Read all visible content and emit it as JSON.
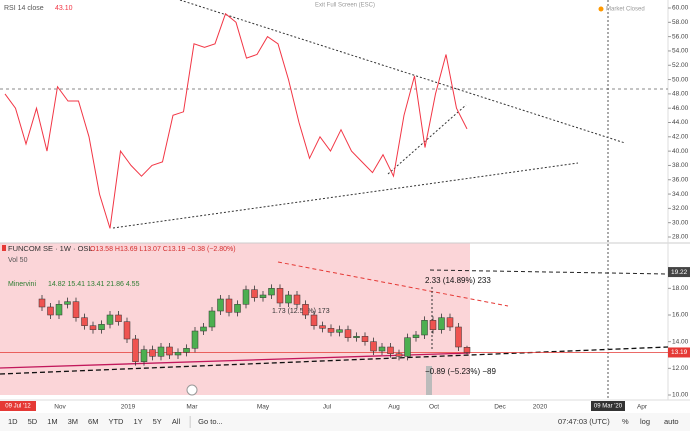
{
  "window": {
    "exit_full_screen": "Exit Full Screen (ESC)",
    "market_status": "Market Closed"
  },
  "rsi": {
    "label": "RSI 14 close",
    "last": "43.10",
    "color": "#f23645",
    "values": [
      48,
      46,
      41,
      46,
      40,
      49,
      47,
      47,
      42,
      34,
      29.2,
      40,
      38,
      36.5,
      38,
      38.5,
      45,
      45.5,
      55,
      54.5,
      55,
      59.2,
      58,
      53,
      53.5,
      56,
      55,
      50,
      44,
      39,
      42,
      40,
      43,
      40,
      38.5,
      37,
      39.5,
      36.5,
      45,
      50.5,
      40.5,
      48,
      53.5,
      46,
      43.1
    ],
    "ylim": [
      28,
      60
    ],
    "yticks": [
      {
        "value": 60,
        "label": "60.00"
      },
      {
        "value": 58,
        "label": "58.00"
      },
      {
        "value": 56,
        "label": "56.00"
      },
      {
        "value": 54,
        "label": "54.00"
      },
      {
        "value": 52,
        "label": "52.00"
      },
      {
        "value": 50,
        "label": "50.00"
      },
      {
        "value": 48,
        "label": "48.00"
      },
      {
        "value": 46,
        "label": "46.00"
      },
      {
        "value": 44,
        "label": "44.00"
      },
      {
        "value": 42,
        "label": "42.00"
      },
      {
        "value": 40,
        "label": "40.00"
      },
      {
        "value": 38,
        "label": "38.00"
      },
      {
        "value": 36,
        "label": "36.00"
      },
      {
        "value": 34,
        "label": "34.00"
      },
      {
        "value": 32,
        "label": "32.00"
      },
      {
        "value": 30,
        "label": "30.00"
      },
      {
        "value": 28,
        "label": "28.00"
      }
    ]
  },
  "price": {
    "symbol": "FUNCOM SE · 1W · OSL",
    "ohlc": "O13.58 H13.69 L13.07 C13.19 −0.38 (−2.80%)",
    "volume": "Vol 50",
    "indicator": "Minervini",
    "indicator_values": "14.82 15.41 13.41 21.86 4.55",
    "up_color": "#4caf50",
    "down_color": "#ef5350",
    "open": [
      17.2,
      16.6,
      16.0,
      16.8,
      17.0,
      15.8,
      15.2,
      14.9,
      15.3,
      16.0,
      15.5,
      14.2,
      12.5,
      13.4,
      12.9,
      13.6,
      13.0,
      13.2,
      13.5,
      14.8,
      15.1,
      16.3,
      17.2,
      16.2,
      16.8,
      17.9,
      17.3,
      17.5,
      18.0,
      16.9,
      17.5,
      16.8,
      16.0,
      15.2,
      15.0,
      14.7,
      14.9,
      14.3,
      14.4,
      14.0,
      13.3,
      13.6,
      13.1,
      12.9,
      14.3,
      14.5,
      15.6,
      14.9,
      15.8,
      15.1,
      13.58
    ],
    "high": [
      17.5,
      16.9,
      17.1,
      17.3,
      17.3,
      16.1,
      15.5,
      15.6,
      16.3,
      16.3,
      15.8,
      14.5,
      13.7,
      13.7,
      13.9,
      13.9,
      13.5,
      13.8,
      15.1,
      15.4,
      16.6,
      17.5,
      17.5,
      17.1,
      18.2,
      18.2,
      17.8,
      18.3,
      18.3,
      17.8,
      17.8,
      17.1,
      16.3,
      15.5,
      15.3,
      15.2,
      15.2,
      14.7,
      14.7,
      14.3,
      13.9,
      13.9,
      13.4,
      14.6,
      14.8,
      15.9,
      15.9,
      16.1,
      16.1,
      15.4,
      13.69
    ],
    "low": [
      16.3,
      15.7,
      15.7,
      16.5,
      15.5,
      14.9,
      14.6,
      14.6,
      15.0,
      15.2,
      13.9,
      12.2,
      12.2,
      12.6,
      12.6,
      12.7,
      12.7,
      12.9,
      13.2,
      14.5,
      14.8,
      16.0,
      15.9,
      15.9,
      16.5,
      17.0,
      17.0,
      17.2,
      16.6,
      16.6,
      16.5,
      15.7,
      14.9,
      14.7,
      14.4,
      14.4,
      14.0,
      14.0,
      13.7,
      13.0,
      13.0,
      12.8,
      12.6,
      12.6,
      14.0,
      14.2,
      14.6,
      14.6,
      14.8,
      13.3,
      13.07
    ],
    "close": [
      16.6,
      16.0,
      16.8,
      17.0,
      15.8,
      15.2,
      14.9,
      15.3,
      16.0,
      15.5,
      14.2,
      12.5,
      13.4,
      12.9,
      13.6,
      13.0,
      13.2,
      13.5,
      14.8,
      15.1,
      16.3,
      17.2,
      16.2,
      16.8,
      17.9,
      17.3,
      17.5,
      18.0,
      16.9,
      17.5,
      16.8,
      16.0,
      15.2,
      15.0,
      14.7,
      14.9,
      14.3,
      14.4,
      14.0,
      13.3,
      13.6,
      13.1,
      12.9,
      14.3,
      14.5,
      15.6,
      14.9,
      15.8,
      15.1,
      13.6,
      13.19
    ],
    "ylim": [
      10,
      21.4
    ],
    "yticks": [
      {
        "value": 18,
        "label": "18.00"
      },
      {
        "value": 16,
        "label": "16.00"
      },
      {
        "value": 14,
        "label": "14.00"
      },
      {
        "value": 12,
        "label": "12.00"
      },
      {
        "value": 10,
        "label": "10.00"
      }
    ],
    "crosshair_label": {
      "value": 19.22,
      "label": "19.22"
    },
    "last_label": {
      "value": 13.19,
      "label": "13.19"
    },
    "annotations": [
      "2.33 (14.89%) 233",
      "−0.89 (−5.23%) −89",
      "1.73 (12.53%) 173"
    ]
  },
  "time_axis": {
    "labels": [
      "Nov",
      "2019",
      "Mar",
      "May",
      "Jul",
      "Aug",
      "Oct",
      "Dec",
      "2020",
      "Apr"
    ],
    "cursor_left": "09 Jul '12",
    "cursor_right": "09 Mar '20"
  },
  "toolbar": {
    "ranges": [
      "1D",
      "5D",
      "1M",
      "3M",
      "6M",
      "YTD",
      "1Y",
      "5Y",
      "All"
    ],
    "goto": "Go to...",
    "clock": "07:47:03 (UTC)",
    "options": [
      "%",
      "log",
      "auto"
    ]
  }
}
